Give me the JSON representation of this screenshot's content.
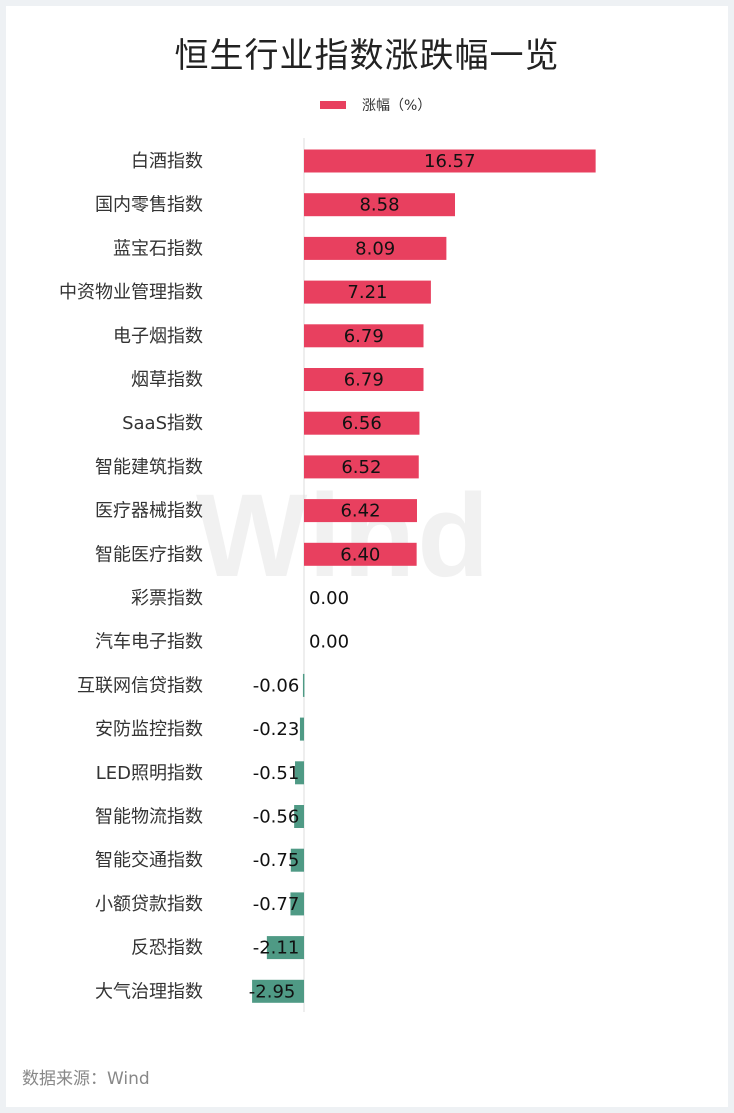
{
  "title": "恒生行业指数涨跌幅一览",
  "source": "数据来源：Wind",
  "watermark": "Wind",
  "colors": {
    "positive": "#e8405f",
    "negative": "#4f9a85",
    "axis": "#dddddd"
  },
  "chart_data": {
    "type": "bar",
    "orientation": "horizontal",
    "title": "恒生行业指数涨跌幅一览",
    "legend": {
      "entries": [
        "涨幅（%）"
      ],
      "placement": "top"
    },
    "categories": [
      "白酒指数",
      "国内零售指数",
      "蓝宝石指数",
      "中资物业管理指数",
      "电子烟指数",
      "烟草指数",
      "SaaS指数",
      "智能建筑指数",
      "医疗器械指数",
      "智能医疗指数",
      "彩票指数",
      "汽车电子指数",
      "互联网信贷指数",
      "安防监控指数",
      "LED照明指数",
      "智能物流指数",
      "智能交通指数",
      "小额贷款指数",
      "反恐指数",
      "大气治理指数"
    ],
    "series": [
      {
        "name": "涨幅（%）",
        "values": [
          16.57,
          8.58,
          8.09,
          7.21,
          6.79,
          6.79,
          6.56,
          6.52,
          6.42,
          6.4,
          0.0,
          0.0,
          -0.06,
          -0.23,
          -0.51,
          -0.56,
          -0.75,
          -0.77,
          -2.11,
          -2.95
        ],
        "labels": [
          "16.57",
          "8.58",
          "8.09",
          "7.21",
          "6.79",
          "6.79",
          "6.56",
          "6.52",
          "6.42",
          "6.40",
          "0.00",
          "0.00",
          "-0.06",
          "-0.23",
          "-0.51",
          "-0.56",
          "-0.75",
          "-0.77",
          "-2.11",
          "-2.95"
        ]
      }
    ],
    "grid": false,
    "data_labels": true
  }
}
